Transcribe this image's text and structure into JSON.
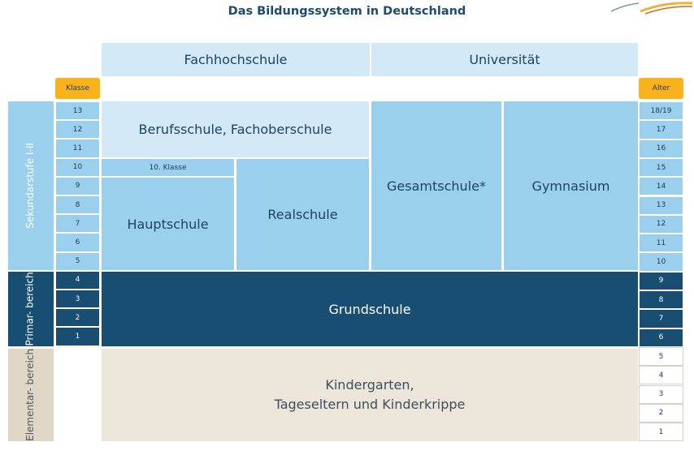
{
  "title": "Das Bildungssystem in Deutschland",
  "tertiary": {
    "fachhochschule": "Fachhochschule",
    "universitaet": "Universität"
  },
  "labels": {
    "klasse": "Klasse",
    "alter": "Alter"
  },
  "stages": {
    "sekundar": "Sekundarstufe I-II",
    "primar": "Primar-\nbereich",
    "elementar": "Elementar-\nbereich"
  },
  "grades": [
    "13",
    "12",
    "11",
    "10",
    "9",
    "8",
    "7",
    "6",
    "5",
    "4",
    "3",
    "2",
    "1"
  ],
  "ages": [
    "18/19",
    "17",
    "16",
    "15",
    "14",
    "13",
    "12",
    "11",
    "10",
    "9",
    "8",
    "7",
    "6",
    "5",
    "4",
    "3",
    "2",
    "1"
  ],
  "schools": {
    "berufsschule": "Berufsschule, Fachoberschule",
    "zehnte_klasse": "10. Klasse",
    "hauptschule": "Hauptschule",
    "realschule": "Realschule",
    "gesamtschule": "Gesamtschule*",
    "gymnasium": "Gymnasium",
    "grundschule": "Grundschule",
    "kindergarten": "Kindergarten,\nTageseltern und Kinderkrippe"
  },
  "colors": {
    "light_blue": "#d3e9f8",
    "mid_blue": "#9acfee",
    "dark_blue": "#174e72",
    "beige": "#ece5da",
    "orange": "#f8b21c"
  }
}
